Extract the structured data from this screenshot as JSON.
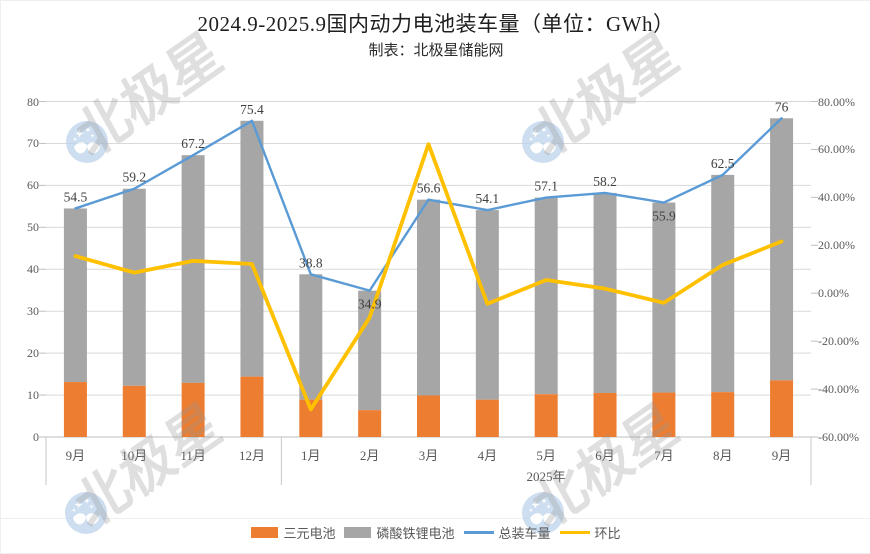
{
  "title": "2024.9-2025.9国内动力电池装车量（单位：GWh）",
  "subtitle": "制表：北极星储能网",
  "watermark": {
    "text": "北极星",
    "logo": "polaris-star-moon-logo",
    "logo_color": "#BDD3EC"
  },
  "legend": [
    {
      "label": "三元电池",
      "type": "bar",
      "color": "#ED7D31"
    },
    {
      "label": "磷酸铁锂电池",
      "type": "bar",
      "color": "#A6A6A6"
    },
    {
      "label": "总装车量",
      "type": "line",
      "color": "#5B9BD5"
    },
    {
      "label": "环比",
      "type": "line",
      "color": "#FFC000"
    }
  ],
  "axes": {
    "left_ticks": [
      "0",
      "10",
      "20",
      "30",
      "40",
      "50",
      "60",
      "70",
      "80"
    ],
    "right_ticks": [
      "80.00%",
      "60.00%",
      "40.00%",
      "20.00%",
      "0.00%",
      "-20.00%",
      "-40.00%",
      "-60.00%"
    ],
    "x_months": [
      "9月",
      "10月",
      "11月",
      "12月",
      "1月",
      "2月",
      "3月",
      "4月",
      "5月",
      "6月",
      "7月",
      "8月",
      "9月"
    ],
    "year_label": "2025年",
    "group_divider_after_index": 3
  },
  "chart_data": {
    "type": "combo: stacked bar + 2 lines, dual y-axes",
    "title": "2024.9-2025.9国内动力电池装车量（单位：GWh）",
    "categories": [
      "2024.9",
      "2024.10",
      "2024.11",
      "2024.12",
      "2025.1",
      "2025.2",
      "2025.3",
      "2025.4",
      "2025.5",
      "2025.6",
      "2025.7",
      "2025.8",
      "2025.9"
    ],
    "left_axis": {
      "min": 0,
      "max": 80,
      "grid_step": 10,
      "grid": true
    },
    "right_axis": {
      "min": -60,
      "max": 80,
      "tick_step": 20,
      "unit": "%"
    },
    "series": [
      {
        "name": "三元电池",
        "type": "bar",
        "stacked": true,
        "color": "#ED7D31",
        "values": [
          13.1,
          12.2,
          12.9,
          14.4,
          8.9,
          6.4,
          9.9,
          8.9,
          10.2,
          10.5,
          10.6,
          10.7,
          13.5
        ],
        "note": "values estimated from bar pixels; no data labels shown"
      },
      {
        "name": "磷酸铁锂电池",
        "type": "bar",
        "stacked": true,
        "color": "#A6A6A6",
        "values": [
          41.4,
          47.0,
          54.3,
          61.0,
          29.9,
          28.5,
          46.7,
          45.2,
          46.9,
          47.7,
          45.3,
          51.8,
          62.5
        ],
        "note": "values estimated from bar pixels; no data labels shown"
      },
      {
        "name": "总装车量",
        "type": "line",
        "axis": "left",
        "color": "#5B9BD5",
        "values": [
          54.5,
          59.2,
          67.2,
          75.4,
          38.8,
          34.9,
          56.6,
          54.1,
          57.1,
          58.2,
          55.9,
          62.5,
          76
        ],
        "labels": [
          "54.5",
          "59.2",
          "67.2",
          "75.4",
          "38.8",
          "34.9",
          "56.6",
          "54.1",
          "57.1",
          "58.2",
          "55.9",
          "62.5",
          "76"
        ],
        "label_below_indices": [
          5,
          10
        ]
      },
      {
        "name": "环比",
        "type": "line",
        "axis": "right",
        "color": "#FFC000",
        "values_pct": [
          15.5,
          8.6,
          13.5,
          12.2,
          -48.5,
          -10.1,
          62.2,
          -4.4,
          5.5,
          1.9,
          -4.0,
          11.8,
          21.6
        ],
        "note": "values estimated from line position; no data labels shown"
      }
    ]
  }
}
